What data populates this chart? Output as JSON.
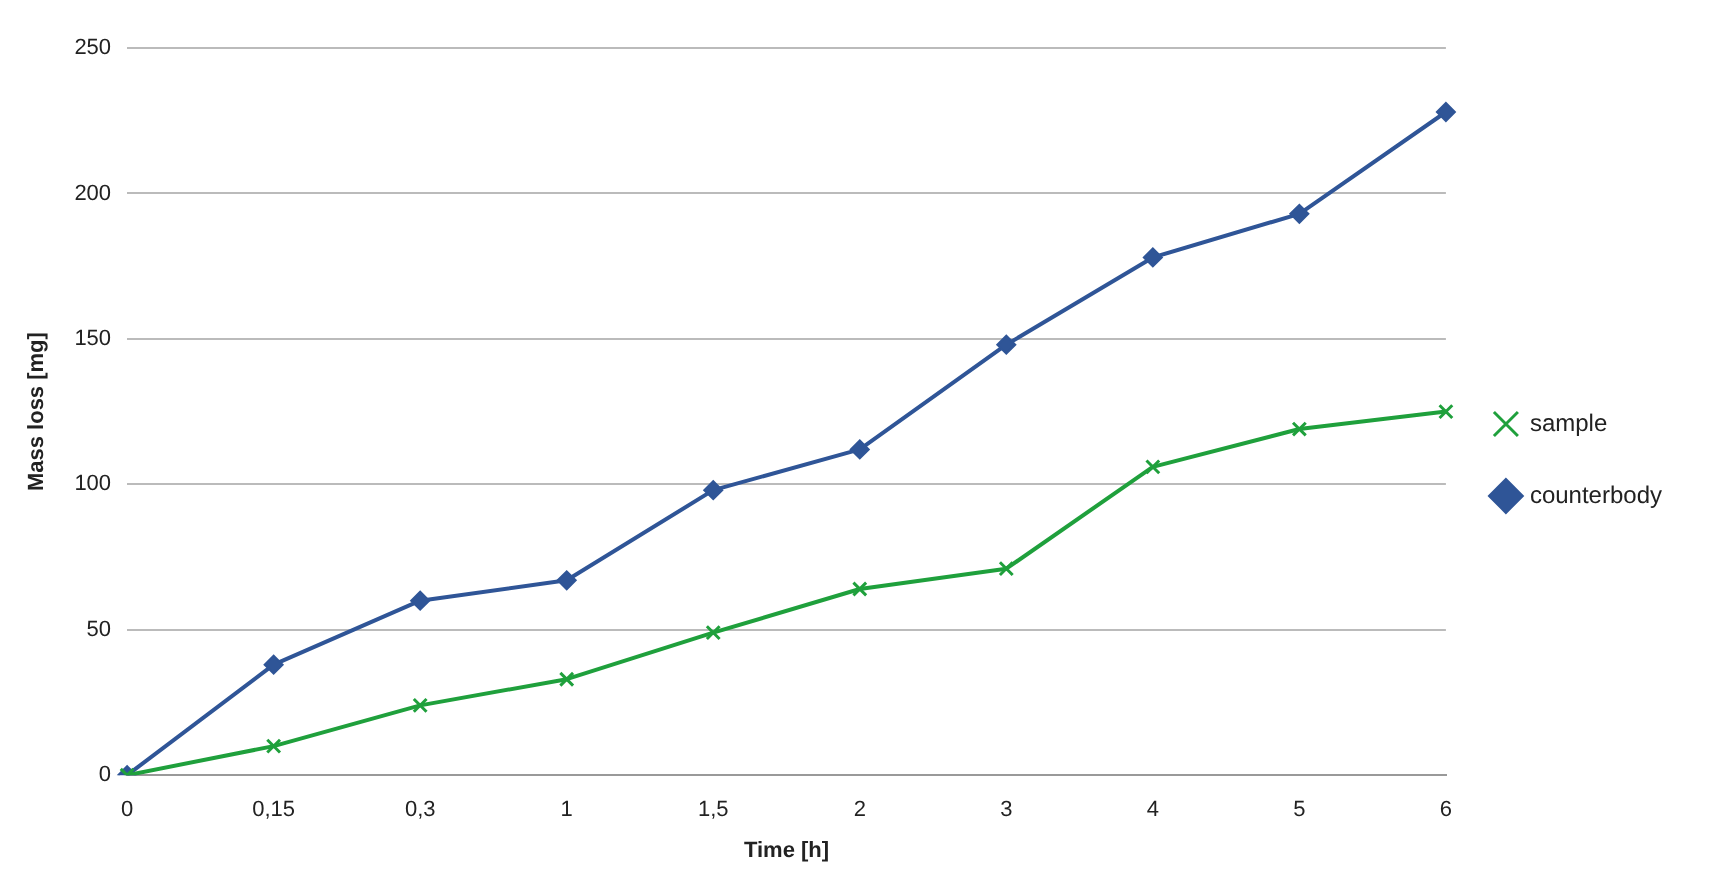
{
  "chart_data": {
    "type": "line",
    "xlabel": "Time [h]",
    "ylabel": "Mass loss [mg]",
    "categories": [
      "0",
      "0,15",
      "0,3",
      "1",
      "1,5",
      "2",
      "3",
      "4",
      "5",
      "6"
    ],
    "series": [
      {
        "name": "sample",
        "color": "#1fa03c",
        "marker": "cross",
        "values": [
          0,
          10,
          24,
          33,
          49,
          64,
          71,
          106,
          119,
          125
        ]
      },
      {
        "name": "counterbody",
        "color": "#2f5597",
        "marker": "diamond",
        "values": [
          0,
          38,
          60,
          67,
          98,
          112,
          148,
          178,
          193,
          228
        ]
      }
    ],
    "ylim": [
      0,
      250
    ],
    "yticks": [
      0,
      50,
      100,
      150,
      200,
      250
    ],
    "grid": "y",
    "legend": "right",
    "line_style": "solid"
  }
}
